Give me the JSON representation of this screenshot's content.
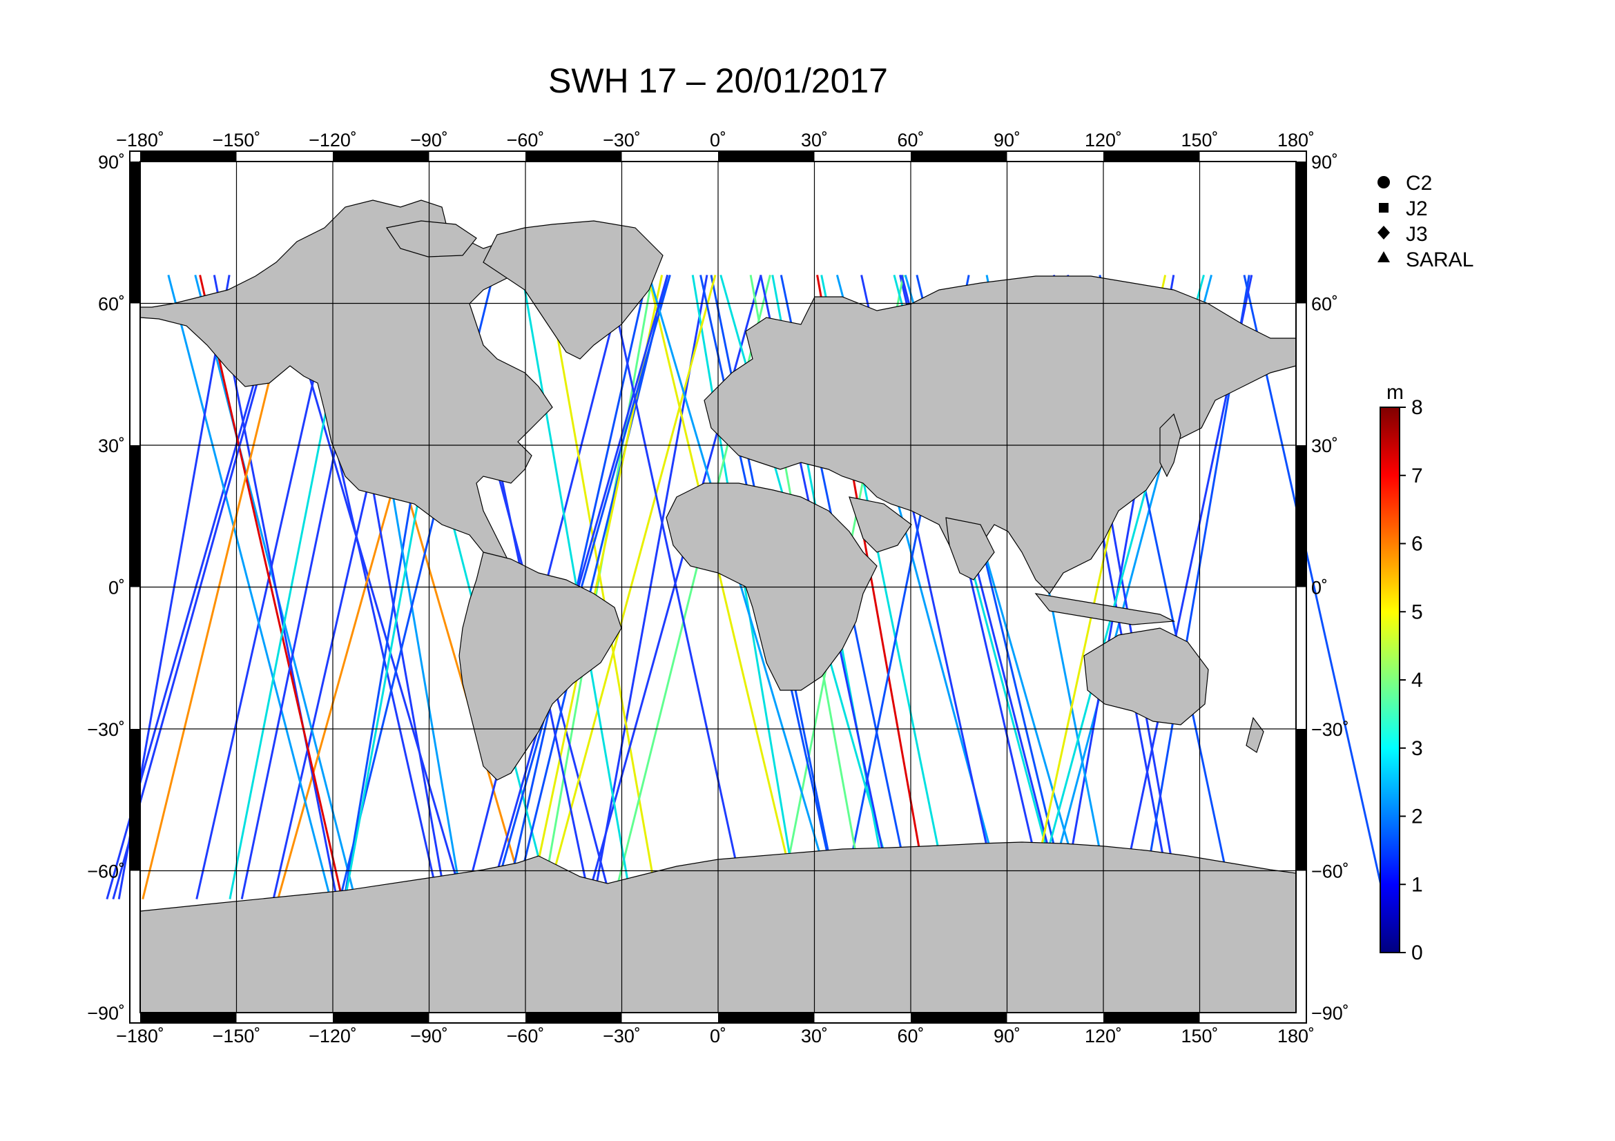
{
  "title": "SWH 17 – 20/01/2017",
  "axes": {
    "lon_ticks": [
      "−180˚",
      "−150˚",
      "−120˚",
      "−90˚",
      "−60˚",
      "−30˚",
      "0˚",
      "30˚",
      "60˚",
      "90˚",
      "120˚",
      "150˚",
      "180˚"
    ],
    "lat_ticks": [
      "90˚",
      "60˚",
      "30˚",
      "0˚",
      "−30˚",
      "−60˚",
      "−90˚"
    ]
  },
  "legend": {
    "items": [
      {
        "label": "C2",
        "icon": "circle-icon"
      },
      {
        "label": "J2",
        "icon": "square-icon"
      },
      {
        "label": "J3",
        "icon": "diamond-icon"
      },
      {
        "label": "SARAL",
        "icon": "triangle-icon"
      }
    ]
  },
  "colorbar": {
    "unit": "m",
    "ticks": [
      "0",
      "1",
      "2",
      "3",
      "4",
      "5",
      "6",
      "7",
      "8"
    ],
    "range": [
      0,
      8
    ],
    "colors": [
      "#00007f",
      "#0000ff",
      "#007fff",
      "#00ffff",
      "#7fff7f",
      "#ffff00",
      "#ff7f00",
      "#ff0000",
      "#7f0000"
    ]
  },
  "colors": {
    "land": "#bebebe",
    "ocean": "#ffffff",
    "frame": "#000000"
  }
}
